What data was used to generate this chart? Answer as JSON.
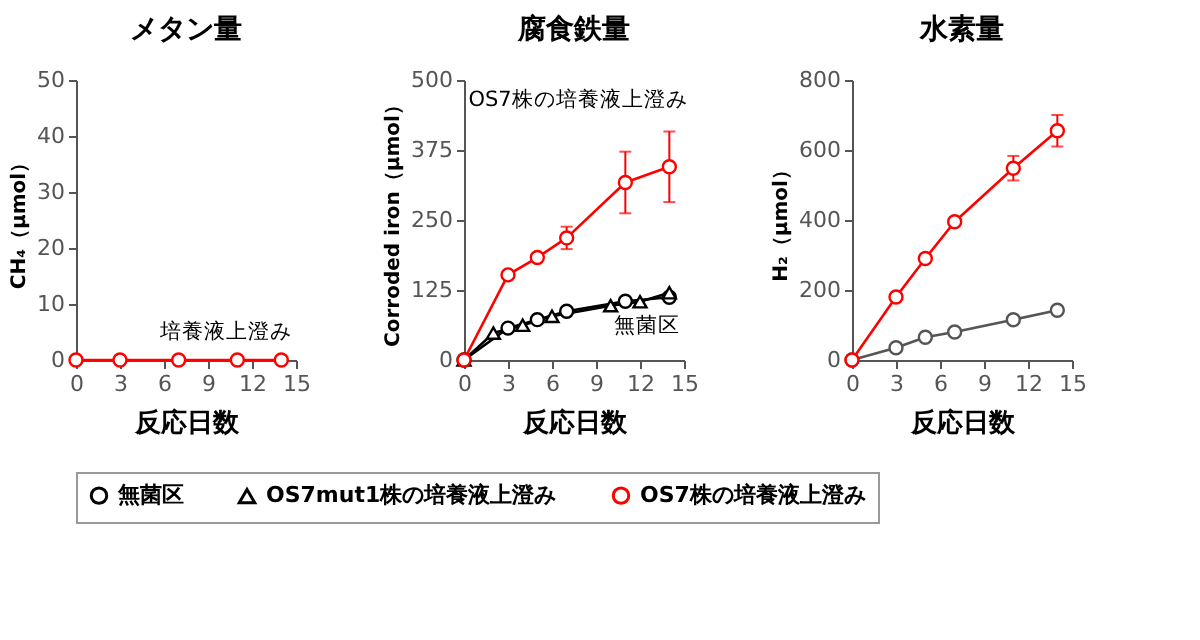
{
  "chart_data": [
    {
      "type": "line",
      "title": "メタン量",
      "xlabel": "反応日数",
      "ylabel": "CH₄（μmol）",
      "xlim": [
        0,
        15
      ],
      "xticks": [
        0,
        3,
        6,
        9,
        12,
        15
      ],
      "ylim": [
        0,
        50
      ],
      "yticks": [
        0,
        10,
        20,
        30,
        40,
        50
      ],
      "series": [
        {
          "color": "#ff0000",
          "marker": "circle",
          "x": [
            0,
            3,
            7,
            11,
            14
          ],
          "values": [
            0,
            0,
            0,
            0,
            0
          ]
        }
      ],
      "annotations": [
        "培養液上澄み"
      ]
    },
    {
      "type": "line",
      "title": "腐食鉄量",
      "xlabel": "反応日数",
      "ylabel": "Corroded iron（μmol）",
      "xlim": [
        0,
        15
      ],
      "xticks": [
        0,
        3,
        6,
        9,
        12,
        15
      ],
      "ylim": [
        0,
        500
      ],
      "yticks": [
        0,
        125,
        250,
        375,
        500
      ],
      "legend": "bottom",
      "series": [
        {
          "name": "無菌区",
          "color": "#000000",
          "marker": "circle",
          "x": [
            0,
            3,
            5,
            7,
            11,
            14
          ],
          "values": [
            0,
            57,
            72,
            87,
            105,
            112
          ]
        },
        {
          "name": "OS7mut1株の培養液上澄み",
          "color": "#000000",
          "marker": "triangle",
          "x": [
            0,
            2,
            4,
            6,
            10,
            12,
            14
          ],
          "values": [
            0,
            48,
            62,
            78,
            97,
            104,
            120
          ]
        },
        {
          "name": "OS7株の培養液上澄み",
          "color": "#ff0000",
          "marker": "circle",
          "x": [
            0,
            3,
            5,
            7,
            11,
            14
          ],
          "values": [
            0,
            152,
            183,
            218,
            317,
            345
          ],
          "errors": [
            null,
            null,
            null,
            20,
            55,
            63
          ]
        }
      ],
      "annotations": [
        "OS7株の培養液上澄み",
        "無菌区"
      ]
    },
    {
      "type": "line",
      "title": "水素量",
      "xlabel": "反応日数",
      "ylabel": "H₂（μmol）",
      "xlim": [
        0,
        15
      ],
      "xticks": [
        0,
        3,
        6,
        9,
        12,
        15
      ],
      "ylim": [
        0,
        800
      ],
      "yticks": [
        0,
        200,
        400,
        600,
        800
      ],
      "series": [
        {
          "color": "#555555",
          "marker": "circle",
          "x": [
            0,
            3,
            5,
            7,
            11,
            14
          ],
          "values": [
            0,
            35,
            65,
            80,
            115,
            142
          ]
        },
        {
          "color": "#ff0000",
          "marker": "circle",
          "x": [
            0,
            3,
            5,
            7,
            11,
            14
          ],
          "values": [
            0,
            180,
            290,
            395,
            548,
            655
          ],
          "errors": [
            null,
            null,
            null,
            null,
            35,
            45
          ]
        }
      ]
    }
  ]
}
